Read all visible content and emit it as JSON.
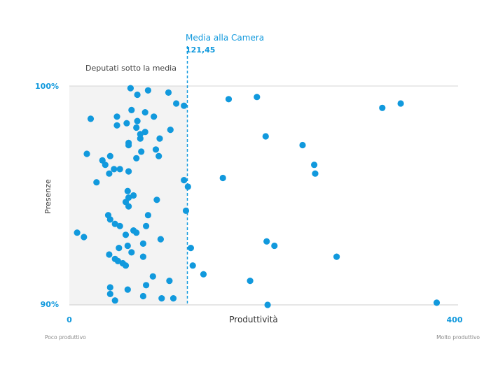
{
  "chart_data": {
    "type": "scatter",
    "title": "",
    "xlabel": "Produttività",
    "ylabel": "Presenze",
    "xlim": [
      0,
      400
    ],
    "ylim": [
      90,
      100
    ],
    "x_tick_labels": [
      "0",
      "400"
    ],
    "y_tick_labels": [
      "90%",
      "100%"
    ],
    "x_axis_left_note": "Poco produttivo",
    "x_axis_right_note": "Molto produttivo",
    "shaded_region_label": "Deputati sotto la media",
    "mean_line": {
      "label": "Media alla Camera",
      "value_label": "121,45",
      "x": 121.45
    },
    "grid": false,
    "colors": {
      "points": "#1199dd",
      "accent": "#1199dd",
      "shaded": "#f3f3f3",
      "text": "#333333",
      "axis": "#cccccc"
    },
    "points": [
      {
        "x": 63,
        "y": 99.9
      },
      {
        "x": 81,
        "y": 99.8
      },
      {
        "x": 70,
        "y": 99.6
      },
      {
        "x": 102,
        "y": 99.7
      },
      {
        "x": 110,
        "y": 99.2
      },
      {
        "x": 118,
        "y": 99.1
      },
      {
        "x": 164,
        "y": 99.4
      },
      {
        "x": 193,
        "y": 99.5
      },
      {
        "x": 322,
        "y": 99.0
      },
      {
        "x": 341,
        "y": 99.2
      },
      {
        "x": 49,
        "y": 98.6
      },
      {
        "x": 64,
        "y": 98.9
      },
      {
        "x": 78,
        "y": 98.8
      },
      {
        "x": 87,
        "y": 98.6
      },
      {
        "x": 22,
        "y": 98.5
      },
      {
        "x": 49,
        "y": 98.2
      },
      {
        "x": 59,
        "y": 98.3
      },
      {
        "x": 70,
        "y": 98.4
      },
      {
        "x": 69,
        "y": 98.1
      },
      {
        "x": 78,
        "y": 97.9
      },
      {
        "x": 104,
        "y": 98.0
      },
      {
        "x": 73,
        "y": 97.8
      },
      {
        "x": 93,
        "y": 97.6
      },
      {
        "x": 202,
        "y": 97.7
      },
      {
        "x": 61,
        "y": 97.4
      },
      {
        "x": 73,
        "y": 97.6
      },
      {
        "x": 61,
        "y": 97.3
      },
      {
        "x": 89,
        "y": 97.1
      },
      {
        "x": 74,
        "y": 97.0
      },
      {
        "x": 240,
        "y": 97.3
      },
      {
        "x": 18,
        "y": 96.9
      },
      {
        "x": 42,
        "y": 96.8
      },
      {
        "x": 92,
        "y": 96.8
      },
      {
        "x": 34,
        "y": 96.6
      },
      {
        "x": 69,
        "y": 96.7
      },
      {
        "x": 61,
        "y": 96.1
      },
      {
        "x": 37,
        "y": 96.4
      },
      {
        "x": 52,
        "y": 96.2
      },
      {
        "x": 41,
        "y": 96.0
      },
      {
        "x": 46,
        "y": 96.2
      },
      {
        "x": 28,
        "y": 95.6
      },
      {
        "x": 252,
        "y": 96.4
      },
      {
        "x": 253,
        "y": 96.0
      },
      {
        "x": 158,
        "y": 95.8
      },
      {
        "x": 60,
        "y": 95.2
      },
      {
        "x": 61,
        "y": 94.9
      },
      {
        "x": 66,
        "y": 95.0
      },
      {
        "x": 58,
        "y": 94.7
      },
      {
        "x": 90,
        "y": 94.8
      },
      {
        "x": 61,
        "y": 94.5
      },
      {
        "x": 118,
        "y": 95.7
      },
      {
        "x": 122,
        "y": 95.4
      },
      {
        "x": 120,
        "y": 94.3
      },
      {
        "x": 40,
        "y": 94.1
      },
      {
        "x": 42,
        "y": 93.9
      },
      {
        "x": 47,
        "y": 93.7
      },
      {
        "x": 52,
        "y": 93.6
      },
      {
        "x": 79,
        "y": 93.6
      },
      {
        "x": 66,
        "y": 93.4
      },
      {
        "x": 69,
        "y": 93.3
      },
      {
        "x": 8,
        "y": 93.3
      },
      {
        "x": 15,
        "y": 93.1
      },
      {
        "x": 58,
        "y": 93.2
      },
      {
        "x": 81,
        "y": 94.1
      },
      {
        "x": 76,
        "y": 92.8
      },
      {
        "x": 60,
        "y": 92.7
      },
      {
        "x": 51,
        "y": 92.6
      },
      {
        "x": 64,
        "y": 92.4
      },
      {
        "x": 94,
        "y": 93.0
      },
      {
        "x": 203,
        "y": 92.9
      },
      {
        "x": 211,
        "y": 92.7
      },
      {
        "x": 125,
        "y": 92.6
      },
      {
        "x": 41,
        "y": 92.3
      },
      {
        "x": 47,
        "y": 92.1
      },
      {
        "x": 55,
        "y": 91.9
      },
      {
        "x": 58,
        "y": 91.8
      },
      {
        "x": 50,
        "y": 92.0
      },
      {
        "x": 76,
        "y": 92.2
      },
      {
        "x": 127,
        "y": 91.8
      },
      {
        "x": 138,
        "y": 91.4
      },
      {
        "x": 275,
        "y": 92.2
      },
      {
        "x": 86,
        "y": 91.3
      },
      {
        "x": 103,
        "y": 91.1
      },
      {
        "x": 79,
        "y": 90.9
      },
      {
        "x": 42,
        "y": 90.8
      },
      {
        "x": 60,
        "y": 90.7
      },
      {
        "x": 42,
        "y": 90.5
      },
      {
        "x": 76,
        "y": 90.4
      },
      {
        "x": 95,
        "y": 90.3
      },
      {
        "x": 107,
        "y": 90.3
      },
      {
        "x": 47,
        "y": 90.2
      },
      {
        "x": 186,
        "y": 91.1
      },
      {
        "x": 204,
        "y": 90.0
      },
      {
        "x": 378,
        "y": 90.1
      }
    ]
  }
}
